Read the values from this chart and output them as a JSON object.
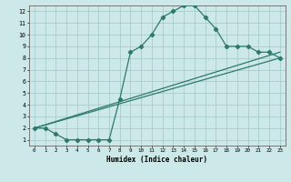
{
  "xlabel": "Humidex (Indice chaleur)",
  "bg_color": "#cce8e8",
  "grid_color": "#aacccc",
  "line_color": "#2d7a6a",
  "xlim": [
    -0.5,
    23.5
  ],
  "ylim": [
    0.5,
    12.5
  ],
  "xticks": [
    0,
    1,
    2,
    3,
    4,
    5,
    6,
    7,
    8,
    9,
    10,
    11,
    12,
    13,
    14,
    15,
    16,
    17,
    18,
    19,
    20,
    21,
    22,
    23
  ],
  "yticks": [
    1,
    2,
    3,
    4,
    5,
    6,
    7,
    8,
    9,
    10,
    11,
    12
  ],
  "line1_x": [
    0,
    1,
    2,
    3,
    4,
    5,
    6,
    7,
    8,
    9,
    10,
    11,
    12,
    13,
    14,
    15,
    16,
    17,
    18,
    19,
    20,
    21,
    22,
    23
  ],
  "line1_y": [
    2.0,
    2.0,
    1.5,
    1.0,
    1.0,
    1.0,
    1.0,
    1.0,
    4.5,
    8.5,
    9.0,
    10.0,
    11.5,
    12.0,
    12.5,
    12.5,
    11.5,
    10.5,
    9.0,
    9.0,
    9.0,
    8.5,
    8.5,
    8.0
  ],
  "line2_x": [
    0,
    23
  ],
  "line2_y": [
    2.0,
    8.0
  ],
  "line3_x": [
    0,
    23
  ],
  "line3_y": [
    2.0,
    8.5
  ],
  "markersize": 2.2,
  "linewidth": 0.9
}
